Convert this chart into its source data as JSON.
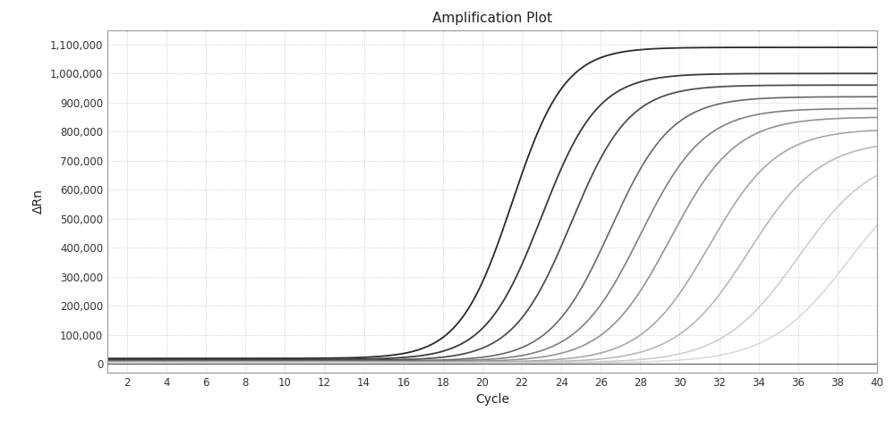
{
  "title": "Amplification Plot",
  "xlabel": "Cycle",
  "ylabel": "ΔRn",
  "xlim": [
    1,
    40
  ],
  "ylim": [
    -30000,
    1150000
  ],
  "xticks": [
    2,
    4,
    6,
    8,
    10,
    12,
    14,
    16,
    18,
    20,
    22,
    24,
    26,
    28,
    30,
    32,
    34,
    36,
    38,
    40
  ],
  "yticks": [
    0,
    100000,
    200000,
    300000,
    400000,
    500000,
    600000,
    700000,
    800000,
    900000,
    1000000,
    1100000
  ],
  "ytick_labels": [
    "0",
    "100,000",
    "200,000",
    "300,000",
    "400,000",
    "500,000",
    "600,000",
    "700,000",
    "800,000",
    "900,000",
    "1,000,000",
    "1,100,000"
  ],
  "background_color": "#ffffff",
  "grid_color": "#c8c8c8",
  "curves": [
    {
      "midpoint": 21.5,
      "steepness": 0.75,
      "plateau": 1090000,
      "baseline": 18000,
      "color": "#2a2a2a",
      "lw": 1.3
    },
    {
      "midpoint": 23.0,
      "steepness": 0.7,
      "plateau": 1000000,
      "baseline": 14000,
      "color": "#3a3a3a",
      "lw": 1.3
    },
    {
      "midpoint": 24.5,
      "steepness": 0.68,
      "plateau": 960000,
      "baseline": 11000,
      "color": "#505050",
      "lw": 1.3
    },
    {
      "midpoint": 26.5,
      "steepness": 0.65,
      "plateau": 920000,
      "baseline": 9000,
      "color": "#686868",
      "lw": 1.2
    },
    {
      "midpoint": 28.0,
      "steepness": 0.62,
      "plateau": 880000,
      "baseline": 7500,
      "color": "#808080",
      "lw": 1.2
    },
    {
      "midpoint": 29.5,
      "steepness": 0.6,
      "plateau": 850000,
      "baseline": 6000,
      "color": "#939393",
      "lw": 1.2
    },
    {
      "midpoint": 31.5,
      "steepness": 0.58,
      "plateau": 810000,
      "baseline": 5000,
      "color": "#a8a8a8",
      "lw": 1.2
    },
    {
      "midpoint": 33.5,
      "steepness": 0.55,
      "plateau": 770000,
      "baseline": 4000,
      "color": "#b8b8b8",
      "lw": 1.2
    },
    {
      "midpoint": 36.0,
      "steepness": 0.52,
      "plateau": 730000,
      "baseline": 3000,
      "color": "#cacaca",
      "lw": 1.1
    },
    {
      "midpoint": 38.5,
      "steepness": 0.5,
      "plateau": 700000,
      "baseline": 2500,
      "color": "#d8d8d8",
      "lw": 1.1
    }
  ]
}
